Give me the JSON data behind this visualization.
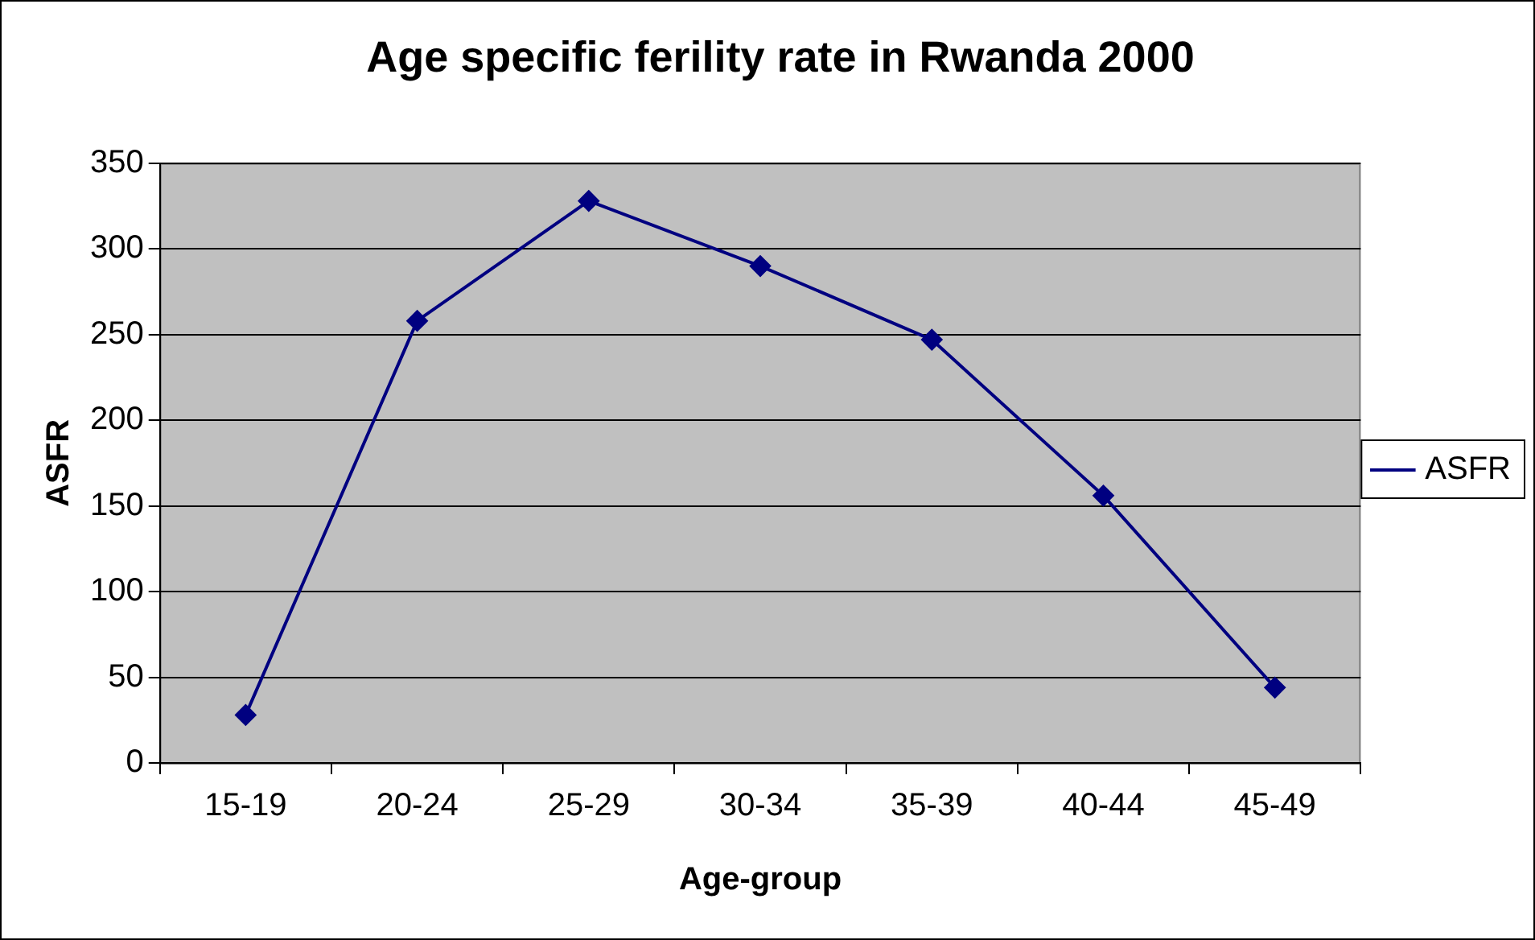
{
  "chart_data": {
    "type": "line",
    "title": "Age specific ferility rate in Rwanda 2000",
    "xlabel": "Age-group",
    "ylabel": "ASFR",
    "categories": [
      "15-19",
      "20-24",
      "25-29",
      "30-34",
      "35-39",
      "40-44",
      "45-49"
    ],
    "series": [
      {
        "name": "ASFR",
        "color": "#000080",
        "values": [
          28,
          258,
          328,
          290,
          247,
          156,
          44
        ]
      }
    ],
    "ylim": [
      0,
      350
    ],
    "yticks": [
      0,
      50,
      100,
      150,
      200,
      250,
      300,
      350
    ],
    "grid": "y",
    "legend": "right",
    "marker": "diamond",
    "line_style": "solid"
  }
}
